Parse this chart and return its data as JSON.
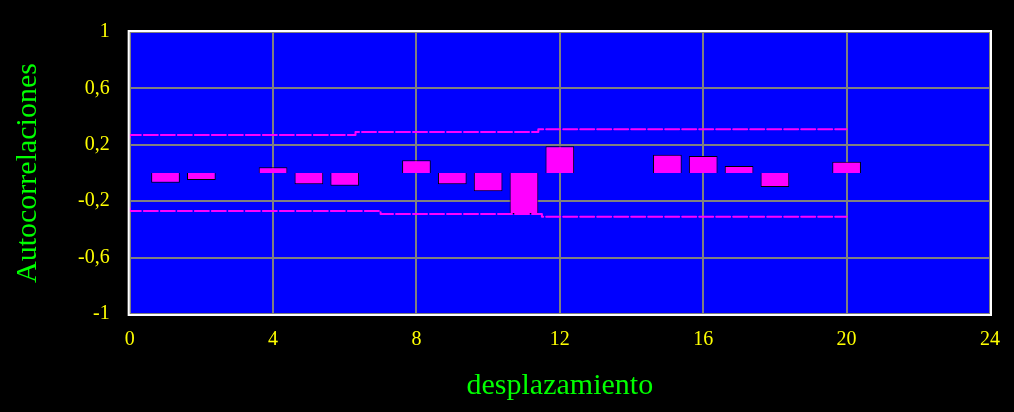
{
  "chart_data": {
    "type": "bar",
    "xlabel": "desplazamiento",
    "ylabel": "Autocorrelaciones",
    "x": [
      1,
      2,
      3,
      4,
      5,
      6,
      7,
      8,
      9,
      10,
      11,
      12,
      13,
      14,
      15,
      16,
      17,
      18,
      19,
      20
    ],
    "series": [
      {
        "color": "#ff00ff",
        "values": [
          -0.07,
          -0.05,
          null,
          0.04,
          -0.08,
          -0.09,
          0,
          0.09,
          -0.08,
          -0.13,
          -0.29,
          0.19,
          0,
          0,
          0.13,
          0.12,
          0.05,
          -0.1,
          null,
          0.08
        ]
      },
      {
        "type": "step",
        "color": "#ff00ff",
        "x": [
          0,
          6.3,
          11.4,
          15.3,
          20
        ],
        "values": [
          0.25,
          0.27,
          0.29,
          0.31,
          0.31
        ]
      },
      {
        "type": "step",
        "color": "#ff00ff",
        "x": [
          0,
          7,
          11.5,
          16,
          20
        ],
        "values": [
          -0.25,
          -0.27,
          -0.29,
          -0.31,
          -0.31
        ]
      }
    ],
    "xlim": [
      0,
      24
    ],
    "xticks": [
      0,
      4,
      8,
      12,
      16,
      20,
      24
    ],
    "ylim": [
      -1,
      1
    ],
    "yticks": [
      -1,
      {
        "value": -0.6,
        "label": "-0,6"
      },
      {
        "value": -0.2,
        "label": "-0,2"
      },
      {
        "value": 0.2,
        "label": "0,2"
      },
      {
        "value": 0.6,
        "label": "0,6"
      },
      1
    ],
    "grid": true,
    "line_style": "dashed",
    "legend": false
  }
}
